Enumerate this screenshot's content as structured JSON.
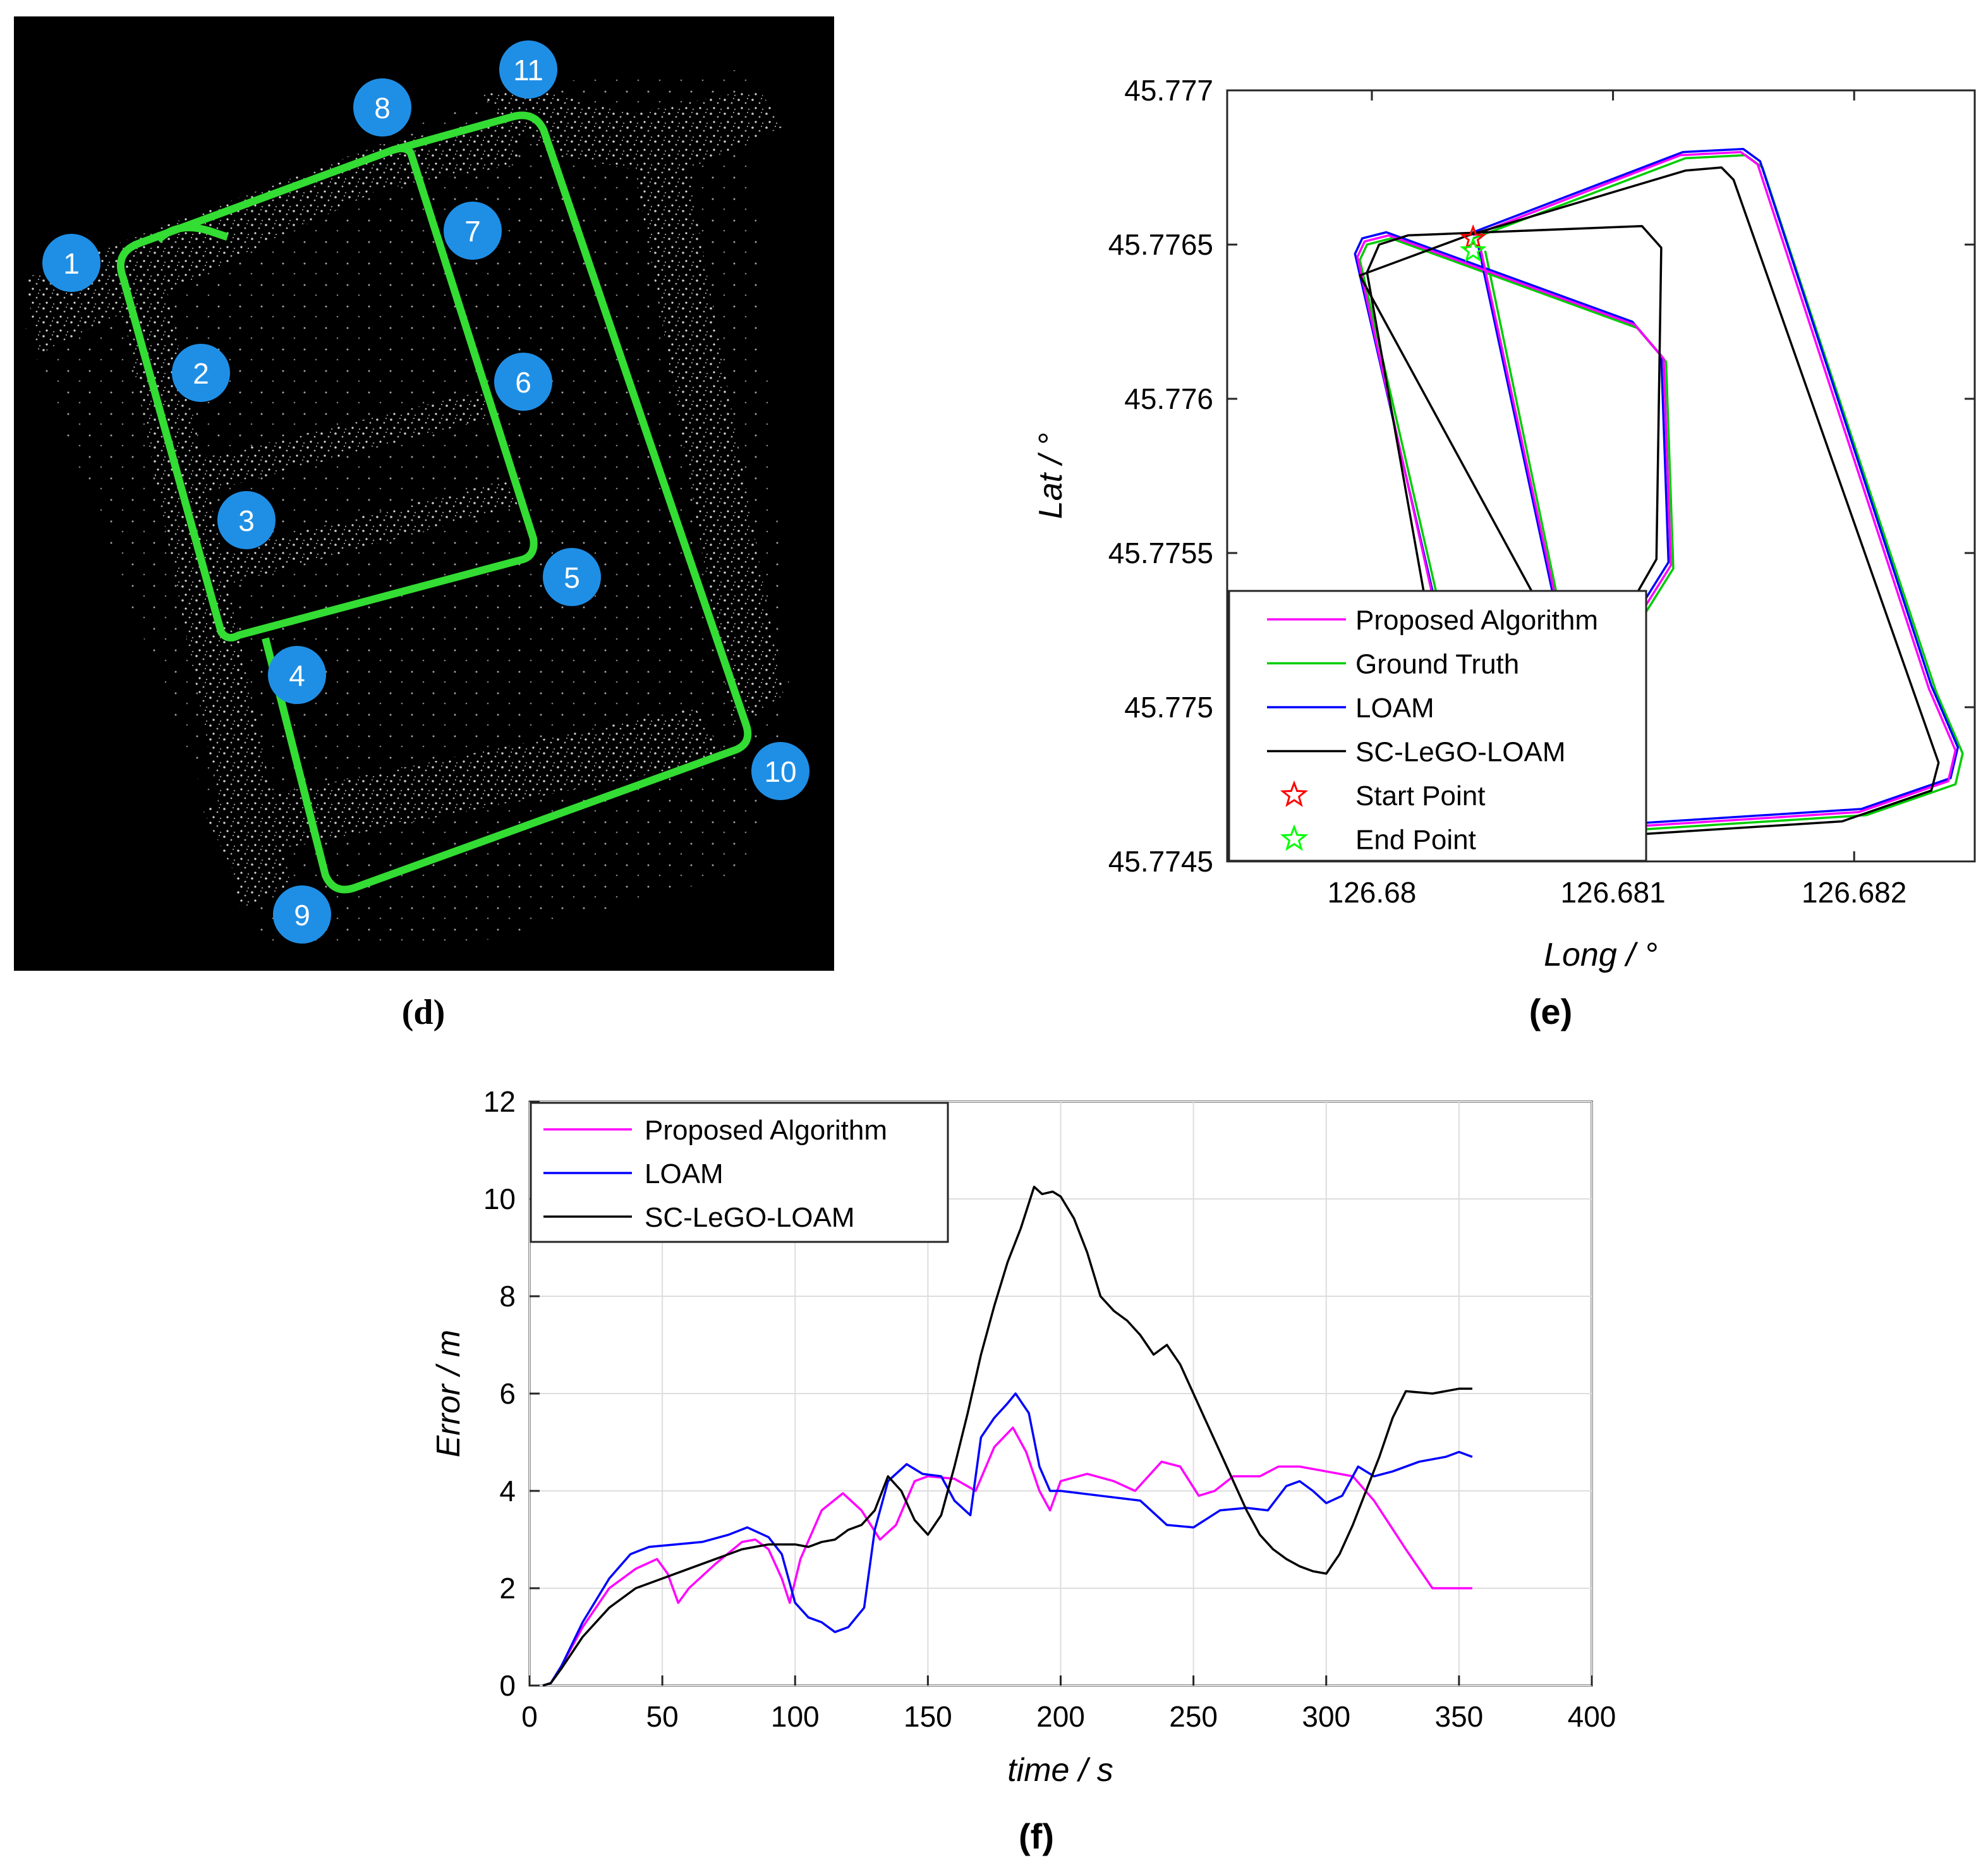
{
  "panels": {
    "d": {
      "caption_letter": "d",
      "markers": [
        "1",
        "2",
        "3",
        "4",
        "5",
        "6",
        "7",
        "8",
        "9",
        "10",
        "11"
      ],
      "colors": {
        "background": "#000000",
        "trajectory": "#33dd33",
        "marker": "#1f8fe6",
        "marker_text": "#ffffff"
      }
    },
    "e": {
      "caption_letter": "e",
      "colors": {
        "proposed": "#ff00ff",
        "ground_truth": "#00cc00",
        "loam": "#0000ff",
        "sc_lego_loam": "#000000",
        "start": "#ff0000",
        "end": "#00ff00"
      }
    },
    "f": {
      "caption_letter": "f",
      "colors": {
        "proposed": "#ff00ff",
        "loam": "#0000ff",
        "sc_lego_loam": "#000000"
      }
    }
  },
  "chart_data": [
    {
      "id": "e",
      "type": "line",
      "xlabel": "Long / °",
      "ylabel": "Lat / °",
      "xlim": [
        126.6794,
        126.6825
      ],
      "ylim": [
        45.7745,
        45.777
      ],
      "xticks": [
        "126.68",
        "126.681",
        "126.682"
      ],
      "xtick_values": [
        126.68,
        126.681,
        126.682
      ],
      "yticks": [
        "45.777",
        "45.7765",
        "45.776",
        "45.7755",
        "45.775",
        "45.7745"
      ],
      "ytick_values": [
        45.777,
        45.7765,
        45.776,
        45.7755,
        45.775,
        45.7745
      ],
      "grid": false,
      "legend_position": "bottom-left",
      "legend": [
        "Proposed Algorithm",
        "Ground Truth",
        "LOAM",
        "SC-LeGO-LOAM",
        "Start Point",
        "End Point"
      ],
      "series": [
        {
          "name": "Ground Truth",
          "x": [
            126.68042,
            126.6813,
            126.68155,
            126.68162,
            126.68234,
            126.68245,
            126.68242,
            126.68205,
            126.68085,
            126.6805,
            126.67995,
            126.67998,
            126.68008,
            126.6811,
            126.68122,
            126.68125,
            126.68113,
            126.6808,
            126.68047
          ],
          "y": [
            45.77652,
            45.77678,
            45.77679,
            45.77675,
            45.77505,
            45.77485,
            45.77475,
            45.77465,
            45.77459,
            45.77458,
            45.77645,
            45.7765,
            45.77652,
            45.77623,
            45.77612,
            45.77545,
            45.7753,
            45.77524,
            45.77648
          ]
        },
        {
          "name": "LOAM",
          "x": [
            126.68042,
            126.68129,
            126.68154,
            126.68161,
            126.68232,
            126.68243,
            126.6824,
            126.68203,
            126.68083,
            126.68048,
            126.67993,
            126.67996,
            126.68006,
            126.68108,
            126.6812,
            126.68123,
            126.68111,
            126.68078,
            126.68044
          ],
          "y": [
            45.77654,
            45.7768,
            45.77681,
            45.77677,
            45.77507,
            45.77487,
            45.77477,
            45.77467,
            45.77461,
            45.7746,
            45.77647,
            45.77652,
            45.77654,
            45.77625,
            45.77614,
            45.77547,
            45.77532,
            45.77526,
            45.7765
          ]
        },
        {
          "name": "Proposed Algorithm",
          "x": [
            126.68042,
            126.68128,
            126.68153,
            126.6816,
            126.68231,
            126.68242,
            126.68239,
            126.68202,
            126.68082,
            126.68047,
            126.67994,
            126.67997,
            126.68007,
            126.68109,
            126.68121,
            126.68124,
            126.68112,
            126.68079,
            126.68045
          ],
          "y": [
            45.77653,
            45.77679,
            45.7768,
            45.77676,
            45.77506,
            45.77486,
            45.77476,
            45.77466,
            45.7746,
            45.77459,
            45.77646,
            45.77651,
            45.77653,
            45.77624,
            45.77613,
            45.77546,
            45.77531,
            45.77525,
            45.77649
          ]
        },
        {
          "name": "SC-LeGO-LOAM",
          "x": [
            126.6804,
            126.6813,
            126.68145,
            126.6815,
            126.68226,
            126.68235,
            126.68232,
            126.68195,
            126.68075,
            126.6804,
            126.67998,
            126.68003,
            126.68015,
            126.68112,
            126.6812,
            126.68118,
            126.68107,
            126.68073,
            126.67995,
            126.6804
          ],
          "y": [
            45.77653,
            45.77674,
            45.77675,
            45.77671,
            45.77502,
            45.77482,
            45.77473,
            45.77463,
            45.77457,
            45.77456,
            45.77641,
            45.7765,
            45.77653,
            45.77656,
            45.77649,
            45.77548,
            45.77533,
            45.77528,
            45.7764,
            45.77653
          ]
        }
      ],
      "points": [
        {
          "name": "Start Point",
          "x": 126.68042,
          "y": 45.77652
        },
        {
          "name": "End Point",
          "x": 126.68042,
          "y": 45.77648
        }
      ]
    },
    {
      "id": "f",
      "type": "line",
      "xlabel": "time / s",
      "ylabel": "Error / m",
      "xlim": [
        0,
        400
      ],
      "ylim": [
        0,
        12
      ],
      "xticks": [
        "0",
        "50",
        "100",
        "150",
        "200",
        "250",
        "300",
        "350",
        "400"
      ],
      "xtick_values": [
        0,
        50,
        100,
        150,
        200,
        250,
        300,
        350,
        400
      ],
      "yticks": [
        "0",
        "2",
        "4",
        "6",
        "8",
        "10",
        "12"
      ],
      "ytick_values": [
        0,
        2,
        4,
        6,
        8,
        10,
        12
      ],
      "grid": true,
      "legend_position": "top-left",
      "legend": [
        "Proposed Algorithm",
        "LOAM",
        "SC-LeGO-LOAM"
      ],
      "series": [
        {
          "name": "Proposed Algorithm",
          "x": [
            5,
            8,
            12,
            20,
            30,
            40,
            48,
            52,
            56,
            60,
            70,
            80,
            85,
            90,
            95,
            98,
            102,
            110,
            118,
            125,
            132,
            138,
            145,
            150,
            160,
            168,
            175,
            182,
            187,
            192,
            196,
            200,
            210,
            220,
            228,
            238,
            245,
            252,
            258,
            265,
            275,
            282,
            290,
            300,
            310,
            318,
            330,
            340,
            350,
            355
          ],
          "y": [
            0,
            0.05,
            0.4,
            1.2,
            2.0,
            2.4,
            2.6,
            2.3,
            1.7,
            2.0,
            2.5,
            2.95,
            3.0,
            2.8,
            2.2,
            1.7,
            2.6,
            3.6,
            3.95,
            3.6,
            3.0,
            3.3,
            4.2,
            4.3,
            4.25,
            4.0,
            4.9,
            5.3,
            4.8,
            4.0,
            3.6,
            4.2,
            4.35,
            4.2,
            4.0,
            4.6,
            4.5,
            3.9,
            4.0,
            4.3,
            4.3,
            4.5,
            4.5,
            4.4,
            4.3,
            3.8,
            2.8,
            2.0,
            2.0,
            2.0
          ]
        },
        {
          "name": "LOAM",
          "x": [
            5,
            8,
            12,
            20,
            30,
            38,
            45,
            55,
            65,
            75,
            82,
            90,
            95,
            100,
            105,
            110,
            115,
            120,
            126,
            130,
            135,
            142,
            148,
            155,
            160,
            166,
            170,
            175,
            180,
            183,
            188,
            192,
            196,
            200,
            215,
            230,
            240,
            250,
            260,
            270,
            278,
            285,
            290,
            295,
            300,
            306,
            312,
            318,
            325,
            335,
            345,
            350,
            355
          ],
          "y": [
            0,
            0.05,
            0.4,
            1.3,
            2.2,
            2.7,
            2.85,
            2.9,
            2.95,
            3.1,
            3.25,
            3.05,
            2.7,
            1.7,
            1.4,
            1.3,
            1.1,
            1.2,
            1.6,
            3.2,
            4.2,
            4.55,
            4.35,
            4.3,
            3.8,
            3.5,
            5.1,
            5.5,
            5.8,
            6.0,
            5.6,
            4.5,
            4.0,
            4.0,
            3.9,
            3.8,
            3.3,
            3.25,
            3.6,
            3.65,
            3.6,
            4.1,
            4.2,
            4.0,
            3.75,
            3.9,
            4.5,
            4.3,
            4.4,
            4.6,
            4.7,
            4.8,
            4.7
          ]
        },
        {
          "name": "SC-LeGO-LOAM",
          "x": [
            5,
            8,
            12,
            20,
            30,
            40,
            50,
            60,
            70,
            80,
            90,
            100,
            105,
            110,
            115,
            120,
            125,
            130,
            135,
            140,
            145,
            150,
            155,
            160,
            165,
            170,
            175,
            180,
            185,
            190,
            193,
            197,
            200,
            205,
            210,
            215,
            220,
            225,
            230,
            235,
            240,
            245,
            250,
            255,
            260,
            265,
            270,
            275,
            280,
            285,
            290,
            295,
            300,
            305,
            310,
            315,
            320,
            325,
            330,
            340,
            350,
            355
          ],
          "y": [
            0,
            0.05,
            0.35,
            1.0,
            1.6,
            2.0,
            2.2,
            2.4,
            2.6,
            2.8,
            2.9,
            2.9,
            2.85,
            2.95,
            3.0,
            3.2,
            3.3,
            3.6,
            4.3,
            4.0,
            3.4,
            3.1,
            3.5,
            4.5,
            5.6,
            6.8,
            7.8,
            8.7,
            9.4,
            10.25,
            10.1,
            10.15,
            10.05,
            9.6,
            8.9,
            8.0,
            7.7,
            7.5,
            7.2,
            6.8,
            7.0,
            6.6,
            6.0,
            5.4,
            4.8,
            4.2,
            3.6,
            3.1,
            2.8,
            2.6,
            2.45,
            2.35,
            2.3,
            2.7,
            3.3,
            4.0,
            4.7,
            5.5,
            6.05,
            6.0,
            6.1,
            6.1
          ]
        }
      ]
    }
  ]
}
